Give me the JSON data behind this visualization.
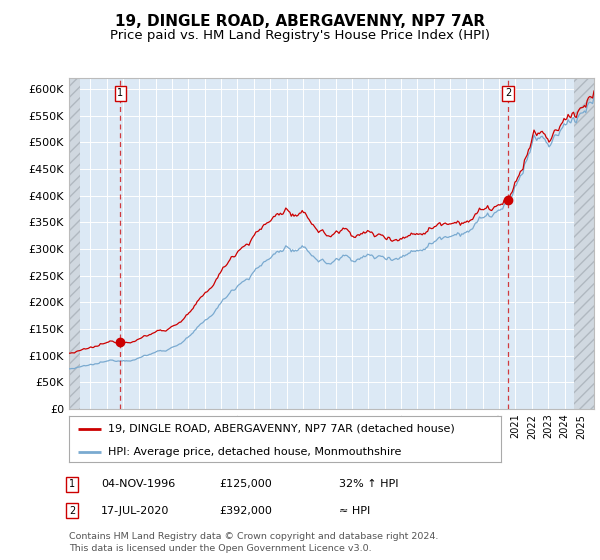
{
  "title": "19, DINGLE ROAD, ABERGAVENNY, NP7 7AR",
  "subtitle": "Price paid vs. HM Land Registry's House Price Index (HPI)",
  "ylim": [
    0,
    620000
  ],
  "yticks": [
    0,
    50000,
    100000,
    150000,
    200000,
    250000,
    300000,
    350000,
    400000,
    450000,
    500000,
    550000,
    600000
  ],
  "ytick_labels": [
    "£0",
    "£50K",
    "£100K",
    "£150K",
    "£200K",
    "£250K",
    "£300K",
    "£350K",
    "£400K",
    "£450K",
    "£500K",
    "£550K",
    "£600K"
  ],
  "xlim_start": 1993.7,
  "xlim_end": 2025.8,
  "hatch_left_end": 1994.4,
  "hatch_right_start": 2024.6,
  "sale1_date": 1996.84,
  "sale1_price": 125000,
  "sale1_label": "04-NOV-1996",
  "sale1_amount": "£125,000",
  "sale1_hpi": "32% ↑ HPI",
  "sale2_date": 2020.54,
  "sale2_price": 392000,
  "sale2_label": "17-JUL-2020",
  "sale2_amount": "£392,000",
  "sale2_hpi": "≈ HPI",
  "legend_line1": "19, DINGLE ROAD, ABERGAVENNY, NP7 7AR (detached house)",
  "legend_line2": "HPI: Average price, detached house, Monmouthshire",
  "footnote": "Contains HM Land Registry data © Crown copyright and database right 2024.\nThis data is licensed under the Open Government Licence v3.0.",
  "red_color": "#cc0000",
  "blue_color": "#7aaad0",
  "bg_color": "#dce9f5",
  "grid_color": "#ffffff",
  "hatch_bg": "#d0d8e0",
  "title_fontsize": 11,
  "subtitle_fontsize": 9.5
}
